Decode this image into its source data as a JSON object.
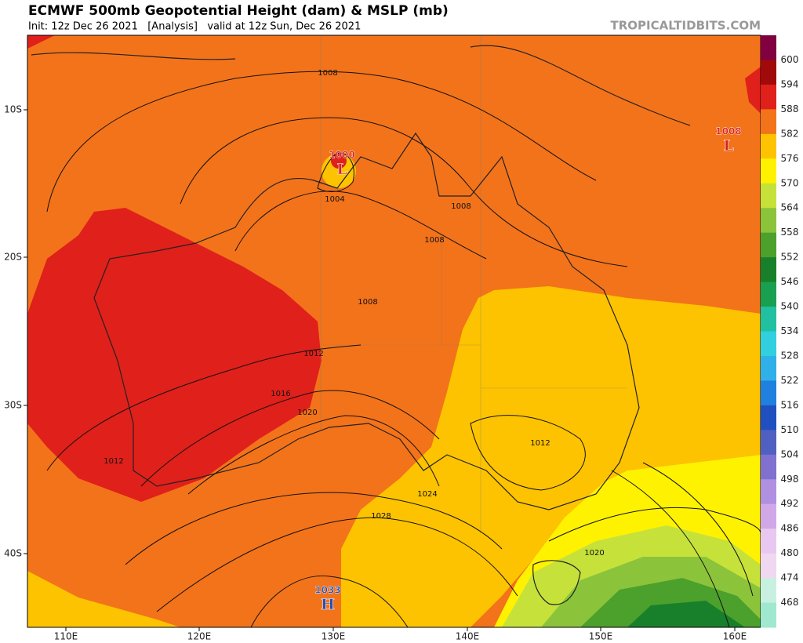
{
  "header": {
    "title": "ECMWF 500mb Geopotential Height (dam) & MSLP (mb)",
    "subtitle": "Init: 12z Dec 26 2021   [Analysis]   valid at 12z Sun, Dec 26 2021",
    "site": "TROPICALTIDBITS.COM"
  },
  "axes": {
    "lat": [
      "10S",
      "20S",
      "30S",
      "40S"
    ],
    "lon": [
      "110E",
      "120E",
      "130E",
      "140E",
      "150E",
      "160E"
    ]
  },
  "colorbar": {
    "labels": [
      "600",
      "594",
      "588",
      "582",
      "576",
      "570",
      "564",
      "558",
      "552",
      "546",
      "540",
      "534",
      "528",
      "522",
      "516",
      "510",
      "504",
      "498",
      "492",
      "486",
      "480",
      "474",
      "468"
    ],
    "colors": [
      "#800040",
      "#a00a0a",
      "#e0201a",
      "#f3731a",
      "#fdc300",
      "#fff200",
      "#c6e23a",
      "#8bc43a",
      "#4ca02c",
      "#18802a",
      "#18a050",
      "#20c0a0",
      "#30d0e0",
      "#30b0e8",
      "#2080e0",
      "#2050c0",
      "#5060c0",
      "#8070d0",
      "#b090e0",
      "#d0a8e8",
      "#e8c8f0",
      "#f0d8f0",
      "#c8f0e0",
      "#a0e8d0"
    ]
  },
  "isobar_labels": [
    "1008",
    "1004",
    "1008",
    "1008",
    "1008",
    "1012",
    "1016",
    "1020",
    "1012",
    "1024",
    "1028",
    "1012",
    "1020"
  ],
  "centers": [
    {
      "value": "1000",
      "symbol": "L"
    },
    {
      "value": "1008",
      "symbol": "L"
    },
    {
      "value": "1033",
      "symbol": "H"
    }
  ]
}
